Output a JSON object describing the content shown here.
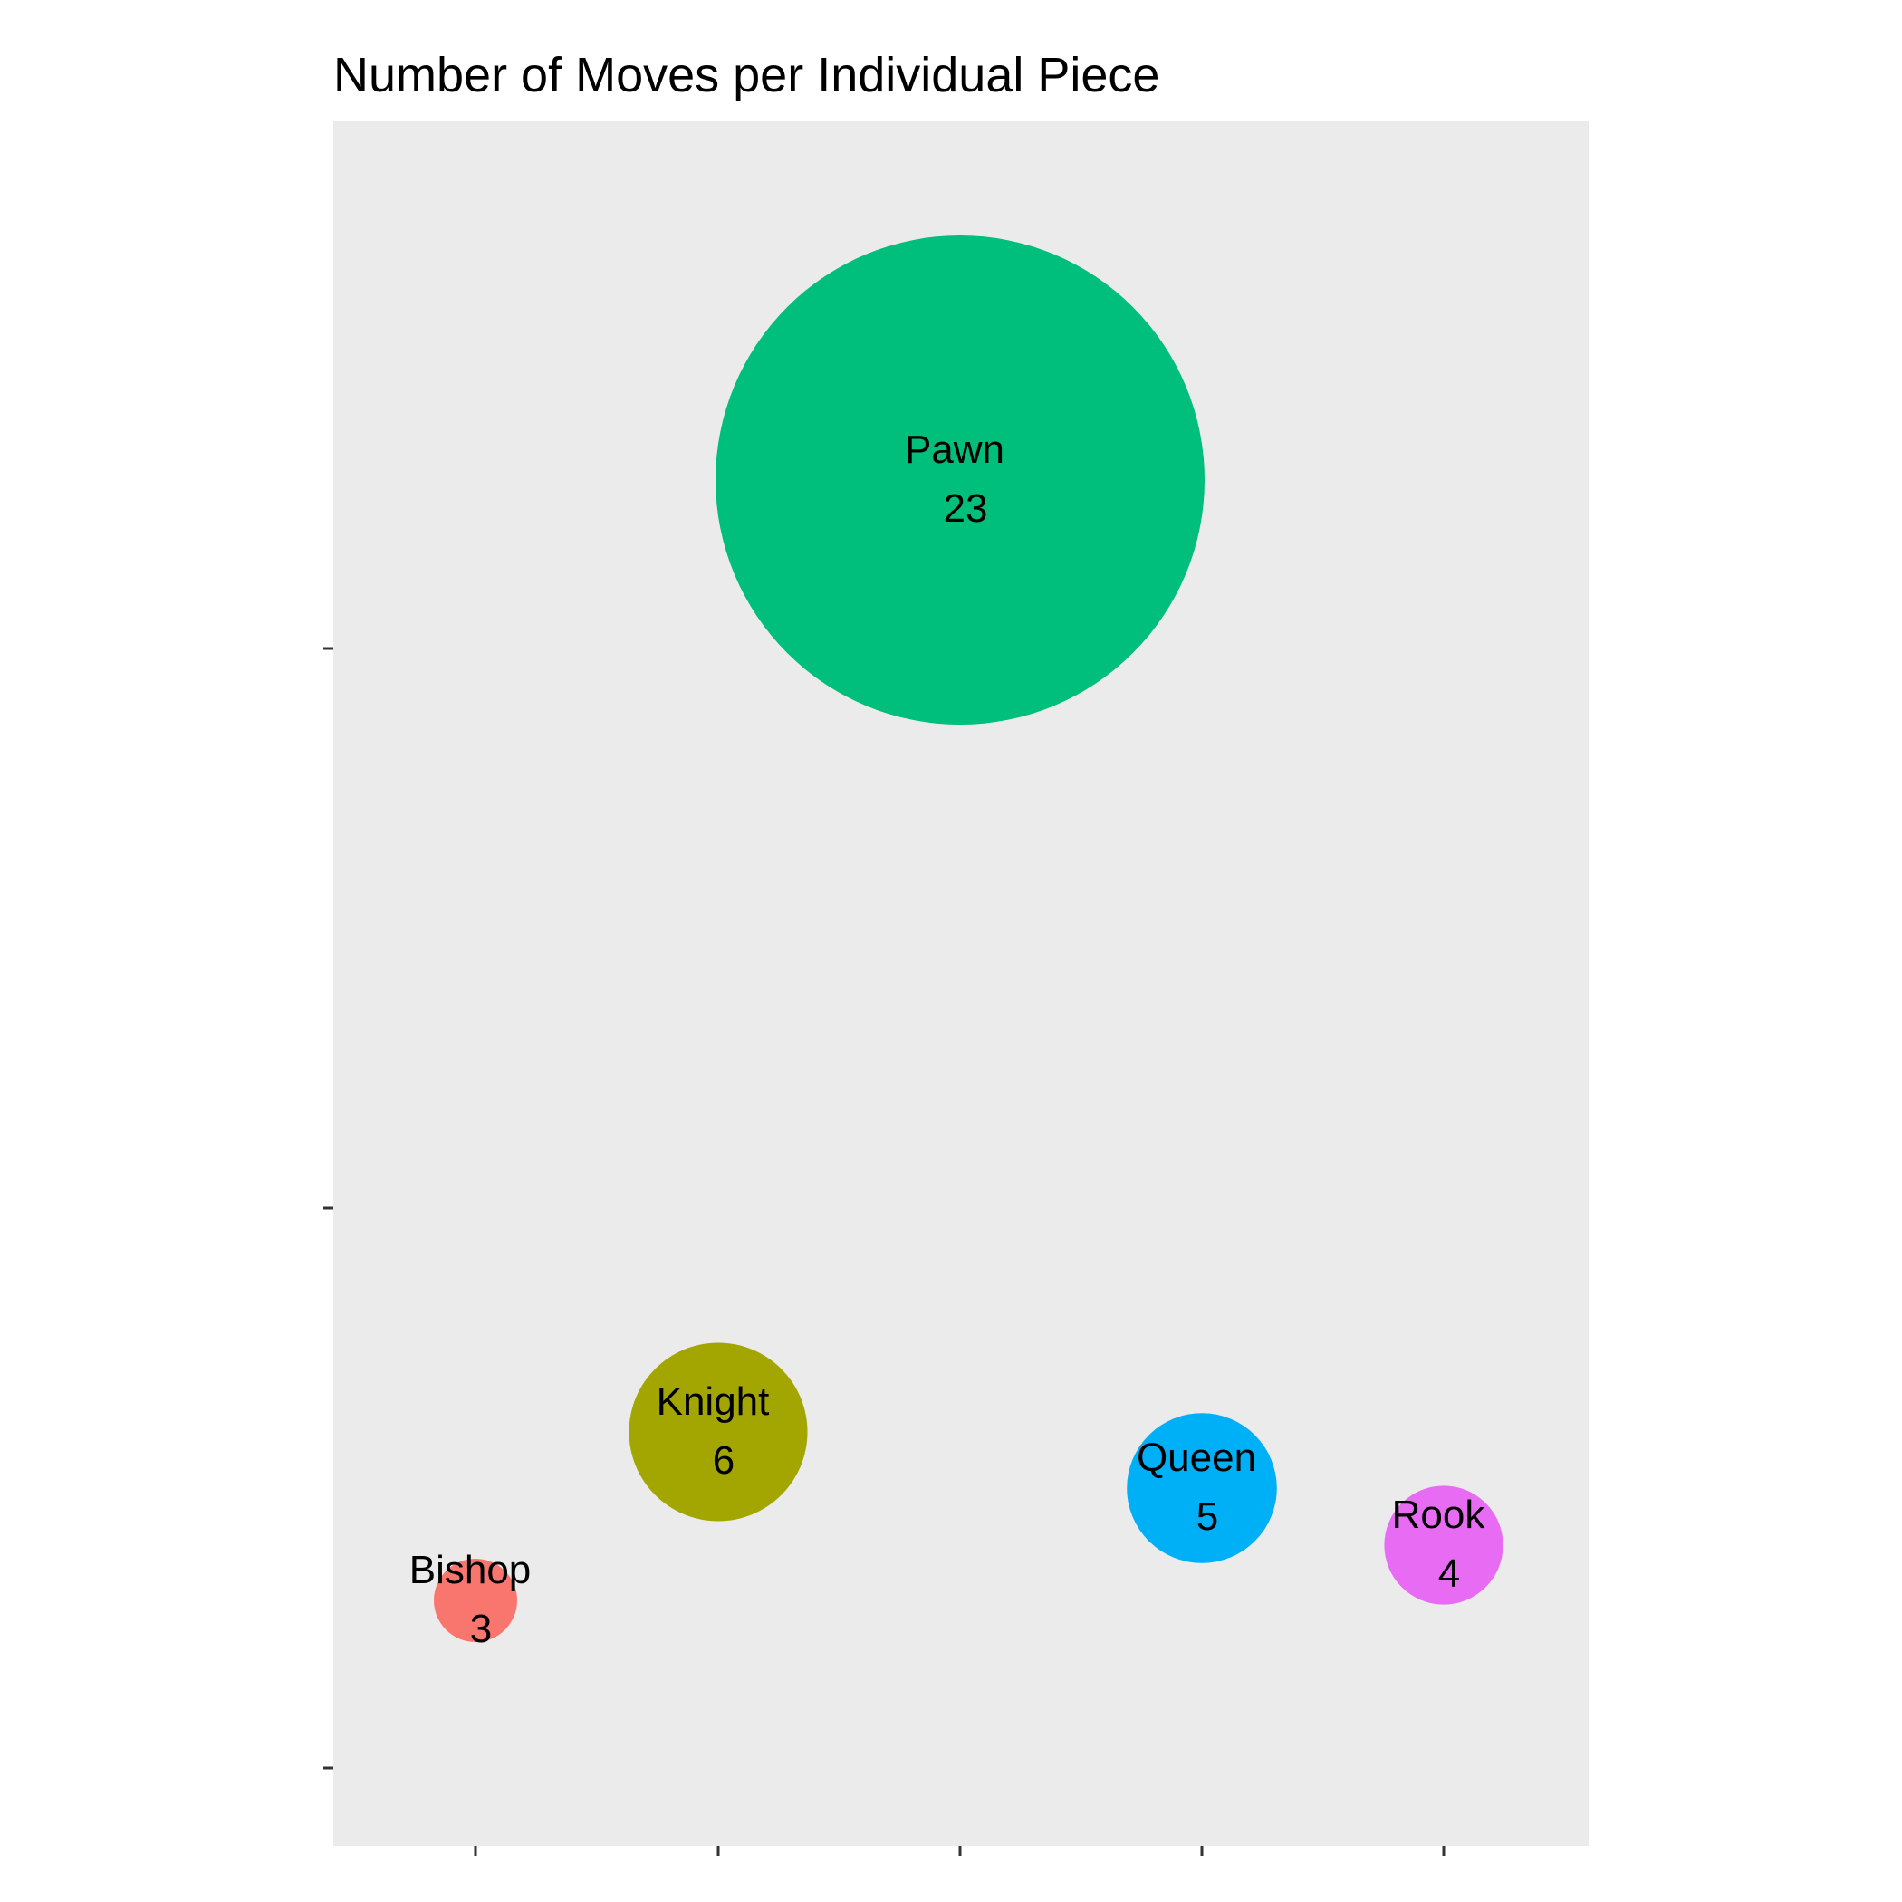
{
  "chart_data": {
    "type": "scatter",
    "title": "Number of Moves per Individual Piece",
    "xlabel": "",
    "ylabel": "",
    "x_tick_labels": [],
    "y_tick_labels": [],
    "grid": false,
    "legend": "none",
    "categories": [
      "Bishop",
      "Knight",
      "Pawn",
      "Queen",
      "Rook"
    ],
    "values": [
      3,
      6,
      23,
      5,
      4
    ],
    "colors": [
      "#F8766D",
      "#A3A500",
      "#00BF7D",
      "#00B0F6",
      "#E76BF3"
    ]
  },
  "theme": {
    "panel_background": "#EBEBEB",
    "page_background": "#FFFFFF",
    "text_color": "#000000",
    "tick_color": "#333333"
  }
}
